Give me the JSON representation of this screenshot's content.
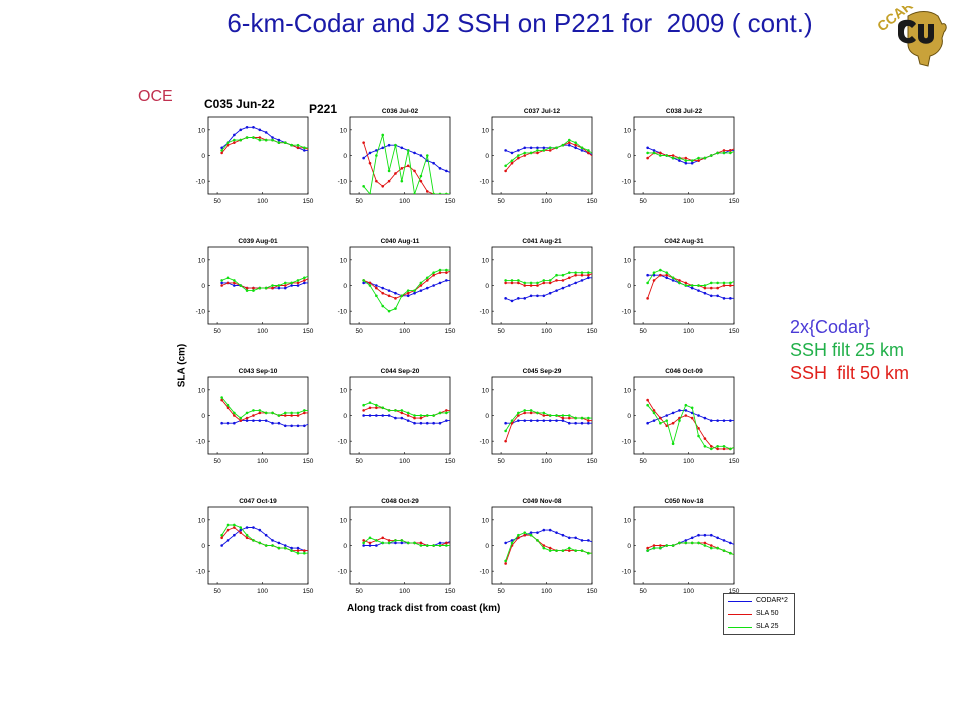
{
  "slide": {
    "title": "6-km-Codar and J2 SSH on P221 for  2009 ( cont.)",
    "logo_text": "CCAR",
    "corner_label": "OCE",
    "track_label": "P221",
    "xlabel": "Along track dist from coast (km)",
    "ylabel": "SLA (cm)",
    "annotation": [
      {
        "text": "2x{Codar}",
        "color": "#4a3ad6"
      },
      {
        "text": "SSH filt 25 km",
        "color": "#22b04a"
      },
      {
        "text": "SSH  filt 50 km",
        "color": "#e0201b"
      }
    ],
    "legend": [
      {
        "label": "CODAR*2",
        "color": "#1212e0"
      },
      {
        "label": "SLA 50",
        "color": "#e01212"
      },
      {
        "label": "SLA 25",
        "color": "#10e010"
      }
    ],
    "colors": {
      "codar": "#1212e0",
      "sla50": "#e01212",
      "sla25": "#10e010"
    }
  },
  "chart_data": {
    "type": "line",
    "x": [
      55,
      62,
      69,
      76,
      83,
      90,
      97,
      104,
      111,
      118,
      125,
      132,
      139,
      146,
      153
    ],
    "xlim": [
      40,
      150
    ],
    "ylim": [
      -15,
      15
    ],
    "xticks": [
      50,
      100,
      150
    ],
    "yticks": [
      10,
      0,
      -10
    ],
    "series_names": [
      "CODAR*2",
      "SLA 50",
      "SLA 25"
    ],
    "panels": [
      {
        "title": "C035  Jun-22",
        "codar": [
          3,
          5,
          8,
          10,
          11,
          11,
          10,
          9,
          7,
          6,
          5,
          4,
          3,
          2,
          2
        ],
        "sla50": [
          1,
          4,
          5,
          6,
          7,
          7,
          7,
          6,
          6,
          5,
          5,
          4,
          3,
          3,
          2
        ],
        "sla25": [
          2,
          5,
          6,
          6,
          7,
          7,
          6,
          6,
          6,
          5,
          5,
          4,
          4,
          3,
          3
        ]
      },
      {
        "title": "C036  Jul-02",
        "codar": [
          -1,
          1,
          2,
          3,
          4,
          4,
          3,
          2,
          1,
          0,
          -2,
          -3,
          -5,
          -6,
          -7
        ],
        "sla50": [
          5,
          -3,
          -10,
          -12,
          -10,
          -7,
          -5,
          -4,
          -6,
          -10,
          -14,
          -15,
          -15,
          -15,
          -15
        ],
        "sla25": [
          -12,
          -15,
          0,
          8,
          -6,
          4,
          -10,
          2,
          -15,
          -8,
          0,
          -15,
          -15,
          -15,
          -15
        ]
      },
      {
        "title": "C037  Jul-12",
        "codar": [
          2,
          1,
          2,
          3,
          3,
          3,
          3,
          3,
          3,
          4,
          4,
          3,
          2,
          1,
          0
        ],
        "sla50": [
          -6,
          -3,
          -1,
          0,
          1,
          1,
          2,
          2,
          3,
          4,
          5,
          4,
          3,
          1,
          -1
        ],
        "sla25": [
          -4,
          -2,
          0,
          1,
          1,
          2,
          2,
          3,
          3,
          4,
          6,
          5,
          3,
          2,
          0
        ]
      },
      {
        "title": "C038  Jul-22",
        "codar": [
          3,
          2,
          1,
          0,
          -1,
          -2,
          -3,
          -3,
          -2,
          -1,
          0,
          1,
          1,
          2,
          2
        ],
        "sla50": [
          -1,
          1,
          1,
          0,
          0,
          -1,
          -1,
          -2,
          -2,
          -1,
          0,
          1,
          2,
          2,
          3
        ],
        "sla25": [
          1,
          1,
          0,
          0,
          -1,
          -1,
          -2,
          -2,
          -1,
          -1,
          0,
          1,
          1,
          1,
          2
        ]
      },
      {
        "title": "C039  Aug-01",
        "codar": [
          1,
          1,
          0,
          0,
          -1,
          -1,
          -1,
          -1,
          -1,
          -1,
          -1,
          0,
          0,
          1,
          1
        ],
        "sla50": [
          0,
          1,
          1,
          0,
          -1,
          -1,
          -1,
          -1,
          -1,
          0,
          0,
          1,
          1,
          2,
          3
        ],
        "sla25": [
          2,
          3,
          2,
          0,
          -2,
          -2,
          -1,
          -1,
          0,
          0,
          1,
          1,
          2,
          3,
          4
        ]
      },
      {
        "title": "C040  Aug-11",
        "codar": [
          1,
          1,
          0,
          -1,
          -2,
          -3,
          -4,
          -4,
          -3,
          -2,
          -1,
          0,
          1,
          2,
          2
        ],
        "sla50": [
          2,
          1,
          -1,
          -3,
          -4,
          -5,
          -4,
          -3,
          -2,
          0,
          2,
          4,
          5,
          5,
          6
        ],
        "sla25": [
          2,
          0,
          -4,
          -8,
          -10,
          -9,
          -4,
          -2,
          -2,
          1,
          3,
          5,
          6,
          6,
          6
        ]
      },
      {
        "title": "C041  Aug-21",
        "codar": [
          -5,
          -6,
          -5,
          -5,
          -4,
          -4,
          -4,
          -3,
          -2,
          -1,
          0,
          1,
          2,
          3,
          3
        ],
        "sla50": [
          1,
          1,
          1,
          0,
          0,
          0,
          1,
          1,
          2,
          2,
          3,
          4,
          4,
          4,
          5
        ],
        "sla25": [
          2,
          2,
          2,
          1,
          1,
          1,
          2,
          2,
          4,
          4,
          5,
          5,
          5,
          5,
          5
        ]
      },
      {
        "title": "C042  Aug-31",
        "codar": [
          4,
          4,
          4,
          3,
          2,
          1,
          0,
          -1,
          -2,
          -3,
          -4,
          -4,
          -5,
          -5,
          -5
        ],
        "sla50": [
          -5,
          2,
          4,
          4,
          3,
          2,
          1,
          0,
          0,
          -1,
          -1,
          -1,
          0,
          0,
          0
        ],
        "sla25": [
          1,
          5,
          6,
          5,
          3,
          1,
          0,
          0,
          0,
          0,
          1,
          1,
          1,
          1,
          2
        ]
      },
      {
        "title": "C043  Sep-10",
        "codar": [
          -3,
          -3,
          -3,
          -2,
          -2,
          -2,
          -2,
          -2,
          -3,
          -3,
          -4,
          -4,
          -4,
          -4,
          -3
        ],
        "sla50": [
          6,
          3,
          0,
          -2,
          -1,
          0,
          1,
          1,
          1,
          0,
          0,
          0,
          0,
          1,
          1
        ],
        "sla25": [
          7,
          4,
          1,
          -1,
          1,
          2,
          2,
          1,
          1,
          0,
          1,
          1,
          1,
          2,
          2
        ]
      },
      {
        "title": "C044  Sep-20",
        "codar": [
          0,
          0,
          0,
          0,
          0,
          -1,
          -1,
          -2,
          -3,
          -3,
          -3,
          -3,
          -3,
          -2,
          -2
        ],
        "sla50": [
          2,
          3,
          3,
          3,
          2,
          2,
          1,
          0,
          -1,
          -1,
          0,
          0,
          1,
          2,
          2
        ],
        "sla25": [
          4,
          5,
          4,
          3,
          2,
          2,
          2,
          1,
          0,
          0,
          0,
          0,
          1,
          1,
          2
        ]
      },
      {
        "title": "C045  Sep-29",
        "codar": [
          -3,
          -3,
          -2,
          -2,
          -2,
          -2,
          -2,
          -2,
          -2,
          -2,
          -3,
          -3,
          -3,
          -3,
          -3
        ],
        "sla50": [
          -10,
          -3,
          0,
          1,
          1,
          1,
          0,
          0,
          0,
          -1,
          -1,
          -1,
          -1,
          -2,
          -2
        ],
        "sla25": [
          -6,
          -2,
          1,
          2,
          2,
          1,
          1,
          0,
          0,
          0,
          0,
          -1,
          -1,
          -1,
          -1
        ]
      },
      {
        "title": "C046  Oct-09",
        "codar": [
          -3,
          -2,
          -1,
          0,
          1,
          2,
          2,
          1,
          0,
          -1,
          -2,
          -2,
          -2,
          -2,
          -2
        ],
        "sla50": [
          6,
          2,
          -1,
          -4,
          -3,
          -1,
          0,
          -1,
          -5,
          -9,
          -12,
          -13,
          -13,
          -13,
          -12
        ],
        "sla25": [
          4,
          1,
          -3,
          -2,
          -11,
          -2,
          4,
          3,
          -8,
          -12,
          -13,
          -12,
          -12,
          -13,
          -12
        ]
      },
      {
        "title": "C047  Oct-19",
        "codar": [
          0,
          2,
          4,
          6,
          7,
          7,
          6,
          4,
          2,
          1,
          0,
          -1,
          -1,
          -2,
          -2
        ],
        "sla50": [
          3,
          6,
          7,
          5,
          3,
          2,
          1,
          0,
          0,
          -1,
          -1,
          -2,
          -2,
          -2,
          -2
        ],
        "sla25": [
          4,
          8,
          8,
          7,
          4,
          2,
          1,
          0,
          0,
          -1,
          -1,
          -2,
          -3,
          -3,
          -3
        ]
      },
      {
        "title": "C048  Oct-29",
        "codar": [
          0,
          0,
          0,
          1,
          1,
          1,
          1,
          1,
          1,
          1,
          0,
          0,
          1,
          1,
          2
        ],
        "sla50": [
          2,
          1,
          2,
          3,
          2,
          2,
          2,
          1,
          1,
          1,
          0,
          0,
          0,
          1,
          1
        ],
        "sla25": [
          1,
          3,
          2,
          1,
          1,
          2,
          2,
          1,
          1,
          0,
          0,
          0,
          0,
          0,
          0
        ]
      },
      {
        "title": "C049  Nov-08",
        "codar": [
          1,
          2,
          3,
          4,
          5,
          5,
          6,
          6,
          5,
          4,
          3,
          3,
          2,
          2,
          1
        ],
        "sla50": [
          -7,
          0,
          3,
          4,
          4,
          2,
          0,
          -1,
          -2,
          -2,
          -2,
          -2,
          -2,
          -3,
          -3
        ],
        "sla25": [
          -6,
          1,
          4,
          5,
          4,
          2,
          -1,
          -2,
          -2,
          -2,
          -1,
          -2,
          -2,
          -3,
          -3
        ]
      },
      {
        "title": "C050  Nov-18",
        "codar": [
          -2,
          -1,
          -1,
          0,
          0,
          1,
          2,
          3,
          4,
          4,
          4,
          3,
          2,
          1,
          0
        ],
        "sla50": [
          -1,
          0,
          0,
          0,
          0,
          1,
          1,
          1,
          1,
          1,
          0,
          -1,
          -2,
          -3,
          -4
        ],
        "sla25": [
          -2,
          -1,
          -1,
          0,
          0,
          1,
          1,
          1,
          1,
          0,
          -1,
          -1,
          -2,
          -3,
          -4
        ]
      }
    ]
  }
}
